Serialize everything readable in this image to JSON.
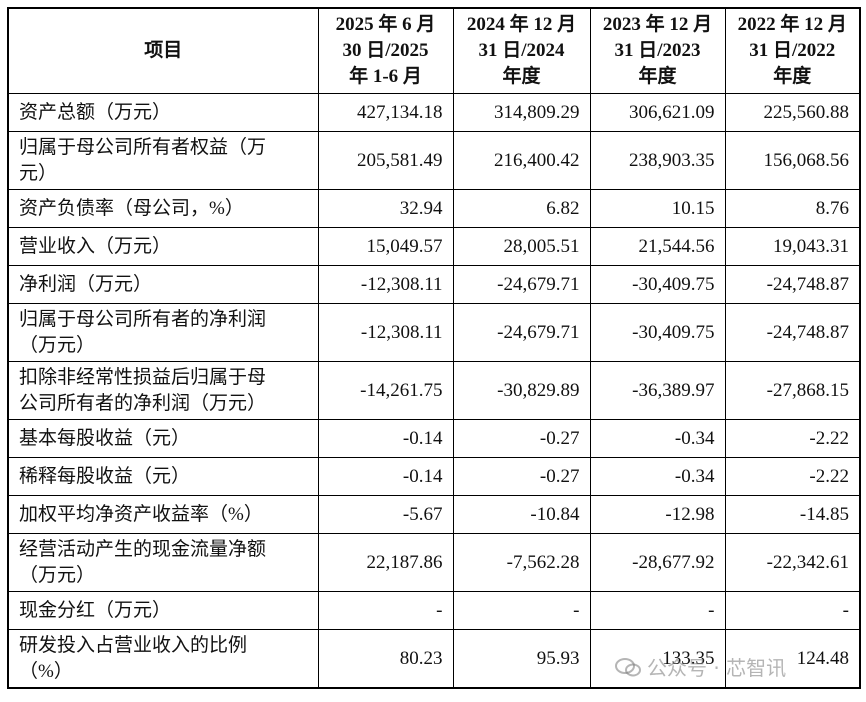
{
  "table": {
    "header": [
      [
        "项目"
      ],
      [
        "2025 年 6 月",
        "30 日/2025",
        "年 1-6 月"
      ],
      [
        "2024 年 12 月",
        "31 日/2024",
        "年度"
      ],
      [
        "2023 年 12 月",
        "31 日/2023",
        "年度"
      ],
      [
        "2022 年 12 月",
        "31 日/2022",
        "年度"
      ]
    ],
    "rows": [
      {
        "label": [
          "资产总额（万元）"
        ],
        "values": [
          "427,134.18",
          "314,809.29",
          "306,621.09",
          "225,560.88"
        ]
      },
      {
        "label": [
          "归属于母公司所有者权益（万",
          "元）"
        ],
        "values": [
          "205,581.49",
          "216,400.42",
          "238,903.35",
          "156,068.56"
        ]
      },
      {
        "label": [
          "资产负债率（母公司，%）"
        ],
        "values": [
          "32.94",
          "6.82",
          "10.15",
          "8.76"
        ]
      },
      {
        "label": [
          "营业收入（万元）"
        ],
        "values": [
          "15,049.57",
          "28,005.51",
          "21,544.56",
          "19,043.31"
        ]
      },
      {
        "label": [
          "净利润（万元）"
        ],
        "values": [
          "-12,308.11",
          "-24,679.71",
          "-30,409.75",
          "-24,748.87"
        ]
      },
      {
        "label": [
          "归属于母公司所有者的净利润",
          "（万元）"
        ],
        "values": [
          "-12,308.11",
          "-24,679.71",
          "-30,409.75",
          "-24,748.87"
        ]
      },
      {
        "label": [
          "扣除非经常性损益后归属于母",
          "公司所有者的净利润（万元）"
        ],
        "values": [
          "-14,261.75",
          "-30,829.89",
          "-36,389.97",
          "-27,868.15"
        ]
      },
      {
        "label": [
          "基本每股收益（元）"
        ],
        "values": [
          "-0.14",
          "-0.27",
          "-0.34",
          "-2.22"
        ]
      },
      {
        "label": [
          "稀释每股收益（元）"
        ],
        "values": [
          "-0.14",
          "-0.27",
          "-0.34",
          "-2.22"
        ]
      },
      {
        "label": [
          "加权平均净资产收益率（%）"
        ],
        "values": [
          "-5.67",
          "-10.84",
          "-12.98",
          "-14.85"
        ]
      },
      {
        "label": [
          "经营活动产生的现金流量净额",
          "（万元）"
        ],
        "values": [
          "22,187.86",
          "-7,562.28",
          "-28,677.92",
          "-22,342.61"
        ]
      },
      {
        "label": [
          "现金分红（万元）"
        ],
        "values": [
          "-",
          "-",
          "-",
          "-"
        ]
      },
      {
        "label": [
          "研发投入占营业收入的比例",
          "（%）"
        ],
        "values": [
          "80.23",
          "95.93",
          "133.35",
          "124.48"
        ]
      }
    ]
  },
  "watermark": "公众号 · 芯智讯"
}
